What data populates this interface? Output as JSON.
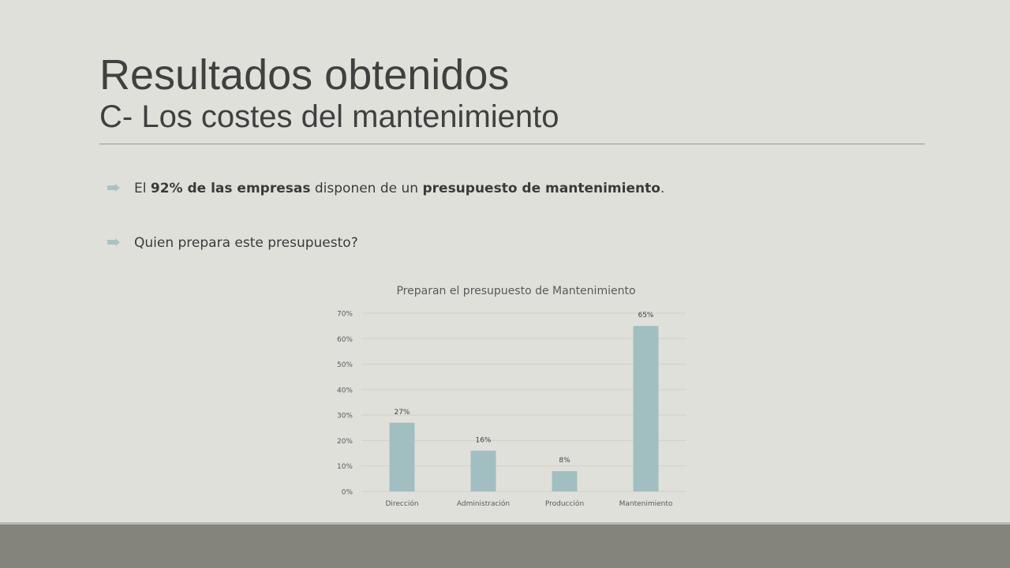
{
  "slide": {
    "title": "Resultados obtenidos",
    "subtitle": "C- Los costes del mantenimiento"
  },
  "bullets": [
    {
      "parts": [
        {
          "text": "El ",
          "bold": false
        },
        {
          "text": "92% de las empresas",
          "bold": true
        },
        {
          "text": " disponen de un ",
          "bold": false
        },
        {
          "text": "presupuesto de mantenimiento",
          "bold": true
        },
        {
          "text": ".",
          "bold": false
        }
      ]
    },
    {
      "parts": [
        {
          "text": "Quien prepara este presupuesto?",
          "bold": false
        }
      ]
    }
  ],
  "colors": {
    "background": "#e0e0db",
    "bar": "#a1bfc0",
    "accent_bullet": "#a7c4c4",
    "footer": "#84847d"
  },
  "chart_data": {
    "type": "bar",
    "title": "Preparan el presupuesto de Mantenimiento",
    "categories": [
      "Dirección",
      "Administración",
      "Producción",
      "Mantenimiento"
    ],
    "values": [
      27,
      16,
      8,
      65
    ],
    "value_labels": [
      "27%",
      "16%",
      "8%",
      "65%"
    ],
    "yticks": [
      "0%",
      "10%",
      "20%",
      "30%",
      "40%",
      "50%",
      "60%",
      "70%"
    ],
    "ylim": [
      0,
      70
    ],
    "grid": true,
    "legend": "none"
  }
}
